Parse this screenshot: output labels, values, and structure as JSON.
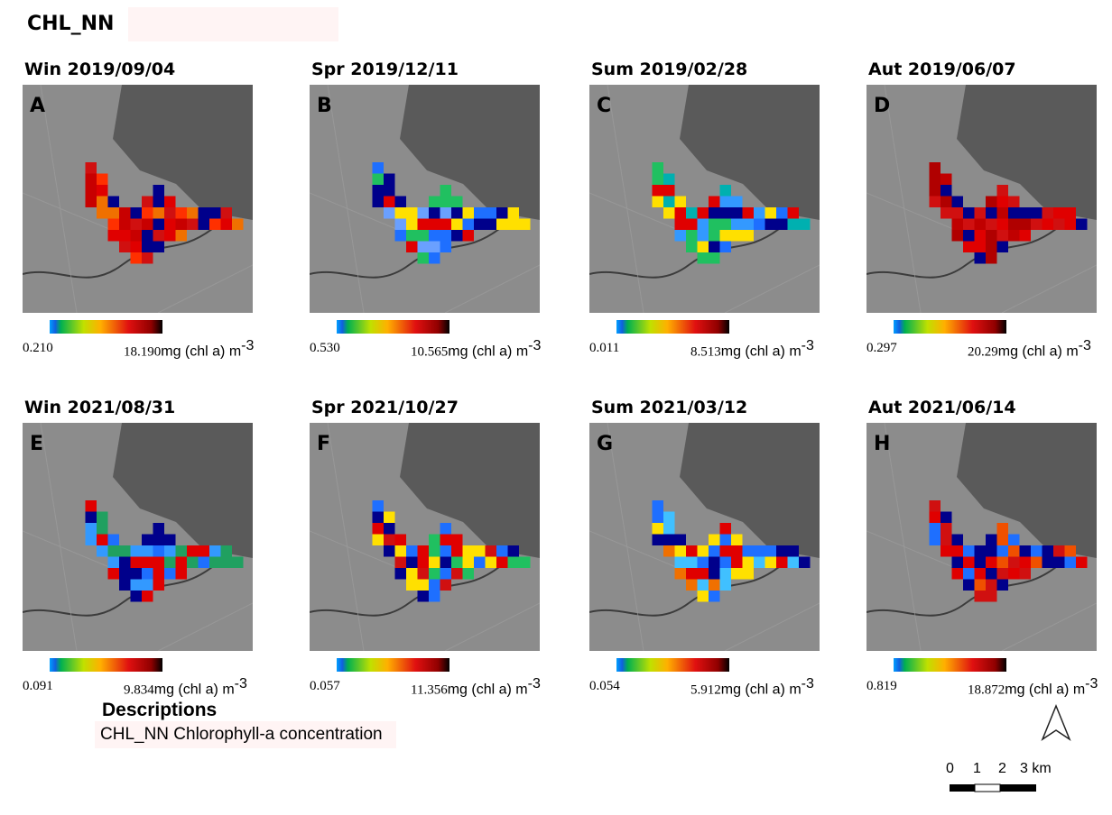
{
  "title": "CHL_NN",
  "panels": [
    {
      "heading": "Win 2019/09/04",
      "letter": "A",
      "min": "0.210",
      "max": "18.190",
      "unit": "mg (chl a) m",
      "unit_exponent": "-3"
    },
    {
      "heading": "Spr 2019/12/11",
      "letter": "B",
      "min": "0.530",
      "max": "10.565",
      "unit": "mg (chl a) m",
      "unit_exponent": "-3"
    },
    {
      "heading": "Sum 2019/02/28",
      "letter": "C",
      "min": "0.011",
      "max": "8.513",
      "unit": "mg (chl a) m",
      "unit_exponent": "-3"
    },
    {
      "heading": "Aut 2019/06/07",
      "letter": "D",
      "min": "0.297",
      "max": "20.29",
      "unit": "mg (chl a) m",
      "unit_exponent": "-3"
    },
    {
      "heading": "Win 2021/08/31",
      "letter": "E",
      "min": "0.091",
      "max": "9.834",
      "unit": "mg (chl a) m",
      "unit_exponent": "-3"
    },
    {
      "heading": "Spr 2021/10/27",
      "letter": "F",
      "min": "0.057",
      "max": "11.356",
      "unit": "mg (chl a) m",
      "unit_exponent": "-3"
    },
    {
      "heading": "Sum 2021/03/12",
      "letter": "G",
      "min": "0.054",
      "max": "5.912",
      "unit": "mg (chl a) m",
      "unit_exponent": "-3"
    },
    {
      "heading": "Aut 2021/06/14",
      "letter": "H",
      "min": "0.819",
      "max": "18.872",
      "unit": "mg (chl a) m",
      "unit_exponent": "-3"
    }
  ],
  "descriptions": {
    "heading": "Descriptions",
    "text": "CHL_NN Chlorophyll-a concentration"
  },
  "scale_bar": {
    "labels": [
      "0",
      "1",
      "2",
      "3 km"
    ]
  }
}
